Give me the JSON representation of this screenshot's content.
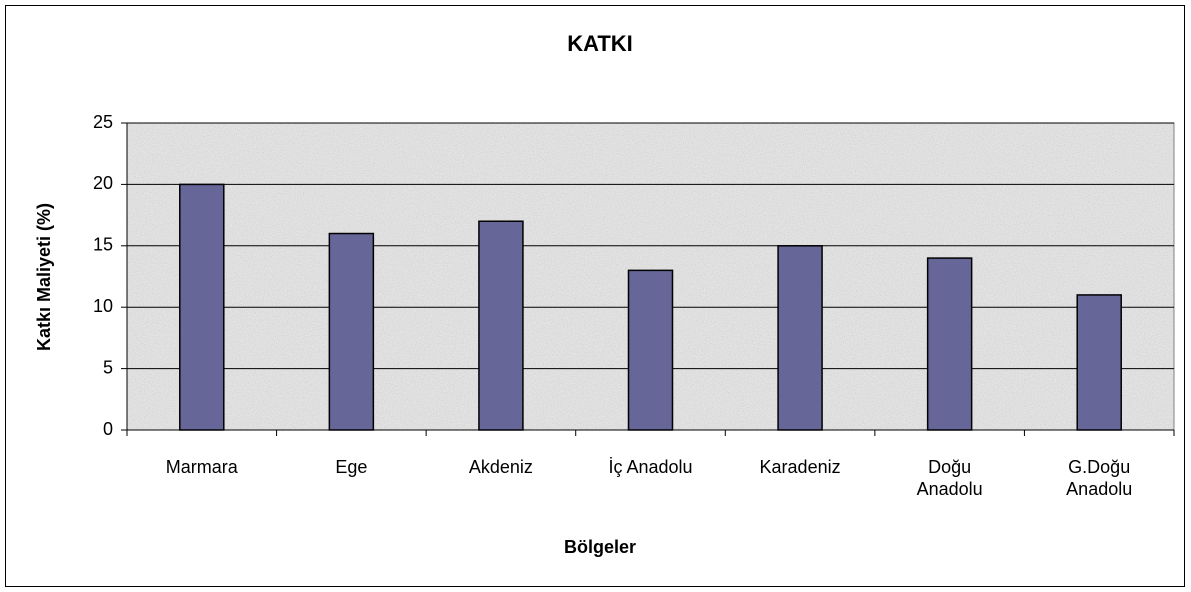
{
  "chart_data": {
    "type": "bar",
    "title": "KATKI",
    "x_label": "Bölgeler",
    "y_label": "Katkı Maliyeti (%)",
    "categories": [
      "Marmara",
      "Ege",
      "Akdeniz",
      "İç Anadolu",
      "Karadeniz",
      "Doğu Anadolu",
      "G.Doğu Anadolu"
    ],
    "values": [
      20,
      16,
      17,
      13,
      15,
      14,
      11
    ],
    "color": "#666699",
    "ylim": [
      0,
      25
    ],
    "yticks": [
      0,
      5,
      10,
      15,
      20,
      25
    ],
    "grid": true
  }
}
